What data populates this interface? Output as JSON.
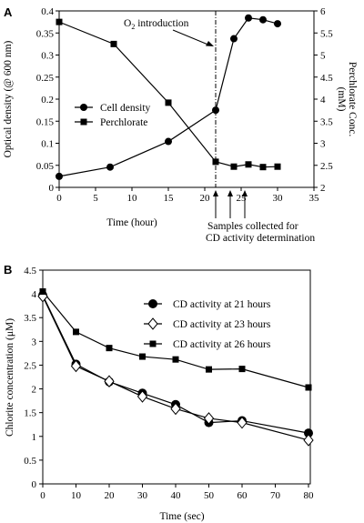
{
  "chart_data": [
    {
      "type": "line",
      "panel_label": "A",
      "xlabel": "Time (hour)",
      "ylabel": "Optical density (@ 600 nm)",
      "y2label_line1": "Perchlorate Conc.",
      "y2label_line2": "(mM)",
      "xlim": [
        0,
        35
      ],
      "ylim": [
        0,
        0.4
      ],
      "y2lim": [
        2,
        6
      ],
      "x_ticks": [
        "0",
        "5",
        "10",
        "15",
        "20",
        "25",
        "30",
        "35"
      ],
      "y_ticks": [
        "0",
        "0.05",
        "0.1",
        "0.15",
        "0.2",
        "0.25",
        "0.3",
        "0.35",
        "0.4"
      ],
      "y2_ticks": [
        "2",
        "2.5",
        "3",
        "3.5",
        "4",
        "4.5",
        "5",
        "5.5",
        "6"
      ],
      "grid": false,
      "legend_position": "left-middle",
      "series": [
        {
          "name": "Cell density",
          "axis": "left",
          "marker": "circle",
          "x": [
            0,
            7,
            15,
            21.5,
            24,
            26,
            28,
            30
          ],
          "y": [
            0.025,
            0.046,
            0.104,
            0.175,
            0.337,
            0.384,
            0.38,
            0.371
          ]
        },
        {
          "name": "Perchlorate",
          "axis": "right",
          "marker": "square",
          "x": [
            0,
            7.5,
            15,
            21.5,
            24,
            26,
            28,
            30
          ],
          "y": [
            5.75,
            5.25,
            3.92,
            2.58,
            2.47,
            2.52,
            2.46,
            2.47
          ]
        }
      ],
      "annotations": {
        "o2_prefix": "O",
        "o2_sub": "2",
        "o2_suffix": " introduction",
        "o2_time": 21.5,
        "samples_line1": "Samples collected for",
        "samples_line2": "CD activity determination",
        "sample_times": [
          21.5,
          23.5,
          25.5
        ]
      }
    },
    {
      "type": "line",
      "panel_label": "B",
      "xlabel": "Time (sec)",
      "ylabel": "Chlorite concentration (μM)",
      "xlim": [
        0,
        80
      ],
      "ylim": [
        0,
        4.5
      ],
      "x_ticks": [
        "0",
        "10",
        "20",
        "30",
        "40",
        "50",
        "60",
        "70",
        "80"
      ],
      "y_ticks": [
        "0",
        "0.5",
        "1",
        "1.5",
        "2",
        "2.5",
        "3",
        "3.5",
        "4",
        "4.5"
      ],
      "grid": false,
      "legend_position": "top-right",
      "series": [
        {
          "name": "CD activity at 21 hours",
          "marker": "circle",
          "x": [
            0,
            10,
            20,
            30,
            40,
            50,
            60,
            80
          ],
          "y": [
            3.97,
            2.52,
            2.15,
            1.91,
            1.67,
            1.29,
            1.33,
            1.07
          ]
        },
        {
          "name": "CD activity at 23 hours",
          "marker": "diamond",
          "x": [
            0,
            10,
            20,
            30,
            40,
            50,
            60,
            80
          ],
          "y": [
            3.95,
            2.48,
            2.16,
            1.84,
            1.58,
            1.38,
            1.29,
            0.92
          ]
        },
        {
          "name": "CD activity at 26 hours",
          "marker": "square",
          "x": [
            0,
            10,
            20,
            30,
            40,
            50,
            60,
            80
          ],
          "y": [
            4.05,
            3.2,
            2.86,
            2.68,
            2.62,
            2.41,
            2.42,
            2.03
          ]
        }
      ]
    }
  ]
}
